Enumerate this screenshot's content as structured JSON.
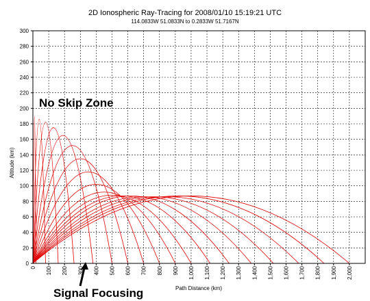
{
  "chart_data": {
    "type": "line",
    "title": "2D Ionospheric Ray-Tracing for 2008/01/10 15:19:21 UTC",
    "subtitle": "114.0833W 51.0833N to 0.2833W 51.7167N",
    "xlabel": "Path Distance (km)",
    "ylabel": "Altitude (km)",
    "xlim": [
      0,
      2100
    ],
    "ylim": [
      0,
      300
    ],
    "x_ticks": [
      100,
      200,
      300,
      400,
      500,
      600,
      700,
      800,
      900,
      1000,
      1100,
      1200,
      1300,
      1400,
      1500,
      1600,
      1700,
      1800,
      1900,
      2000
    ],
    "x_tick_labels": [
      "100",
      "200",
      "300",
      "400",
      "500",
      "600",
      "700",
      "800",
      "900",
      "1,000",
      "1,100",
      "1,200",
      "1,300",
      "1,400",
      "1,500",
      "1,600",
      "1,700",
      "1,800",
      "1,900",
      "2,000"
    ],
    "x_origin_label": "0",
    "y_ticks": [
      0,
      20,
      40,
      60,
      80,
      100,
      120,
      140,
      160,
      180,
      200,
      220,
      240,
      260,
      280,
      300
    ],
    "y_tick_labels": [
      "0",
      "20",
      "40",
      "60",
      "80",
      "100",
      "120",
      "140",
      "160",
      "180",
      "200",
      "220",
      "240",
      "260",
      "280",
      "300"
    ],
    "grid": true,
    "ray_color": "#e00000",
    "series": [
      {
        "values": [
          [
            0,
            0
          ],
          [
            10,
            190
          ],
          [
            20,
            0
          ]
        ]
      },
      {
        "values": [
          [
            0,
            0
          ],
          [
            40,
            186
          ],
          [
            80,
            0
          ]
        ]
      },
      {
        "values": [
          [
            0,
            0
          ],
          [
            80,
            182
          ],
          [
            160,
            0
          ]
        ]
      },
      {
        "values": [
          [
            0,
            0
          ],
          [
            130,
            175
          ],
          [
            260,
            0
          ]
        ]
      },
      {
        "values": [
          [
            0,
            0
          ],
          [
            190,
            165
          ],
          [
            380,
            0
          ]
        ]
      },
      {
        "values": [
          [
            0,
            0
          ],
          [
            250,
            152
          ],
          [
            500,
            0
          ]
        ]
      },
      {
        "values": [
          [
            0,
            0
          ],
          [
            300,
            135
          ],
          [
            600,
            0
          ]
        ]
      },
      {
        "values": [
          [
            0,
            0
          ],
          [
            350,
            118
          ],
          [
            700,
            0
          ]
        ]
      },
      {
        "values": [
          [
            0,
            0
          ],
          [
            400,
            102
          ],
          [
            800,
            0
          ]
        ]
      },
      {
        "values": [
          [
            0,
            0
          ],
          [
            450,
            92
          ],
          [
            900,
            0
          ]
        ]
      },
      {
        "values": [
          [
            0,
            0
          ],
          [
            500,
            88
          ],
          [
            1000,
            0
          ]
        ]
      },
      {
        "values": [
          [
            0,
            0
          ],
          [
            560,
            87
          ],
          [
            1120,
            0
          ]
        ]
      },
      {
        "values": [
          [
            0,
            0
          ],
          [
            620,
            87
          ],
          [
            1240,
            0
          ]
        ]
      },
      {
        "values": [
          [
            0,
            0
          ],
          [
            690,
            86
          ],
          [
            1380,
            0
          ]
        ]
      },
      {
        "values": [
          [
            0,
            0
          ],
          [
            760,
            86
          ],
          [
            1520,
            0
          ]
        ]
      },
      {
        "values": [
          [
            0,
            0
          ],
          [
            840,
            86
          ],
          [
            1680,
            0
          ]
        ]
      },
      {
        "values": [
          [
            0,
            0
          ],
          [
            920,
            87
          ],
          [
            1840,
            0
          ]
        ]
      },
      {
        "values": [
          [
            0,
            0
          ],
          [
            1000,
            87
          ],
          [
            2000,
            0
          ]
        ]
      }
    ],
    "annotations": [
      {
        "text": "No Skip Zone"
      },
      {
        "text": "Signal Focusing"
      }
    ]
  }
}
